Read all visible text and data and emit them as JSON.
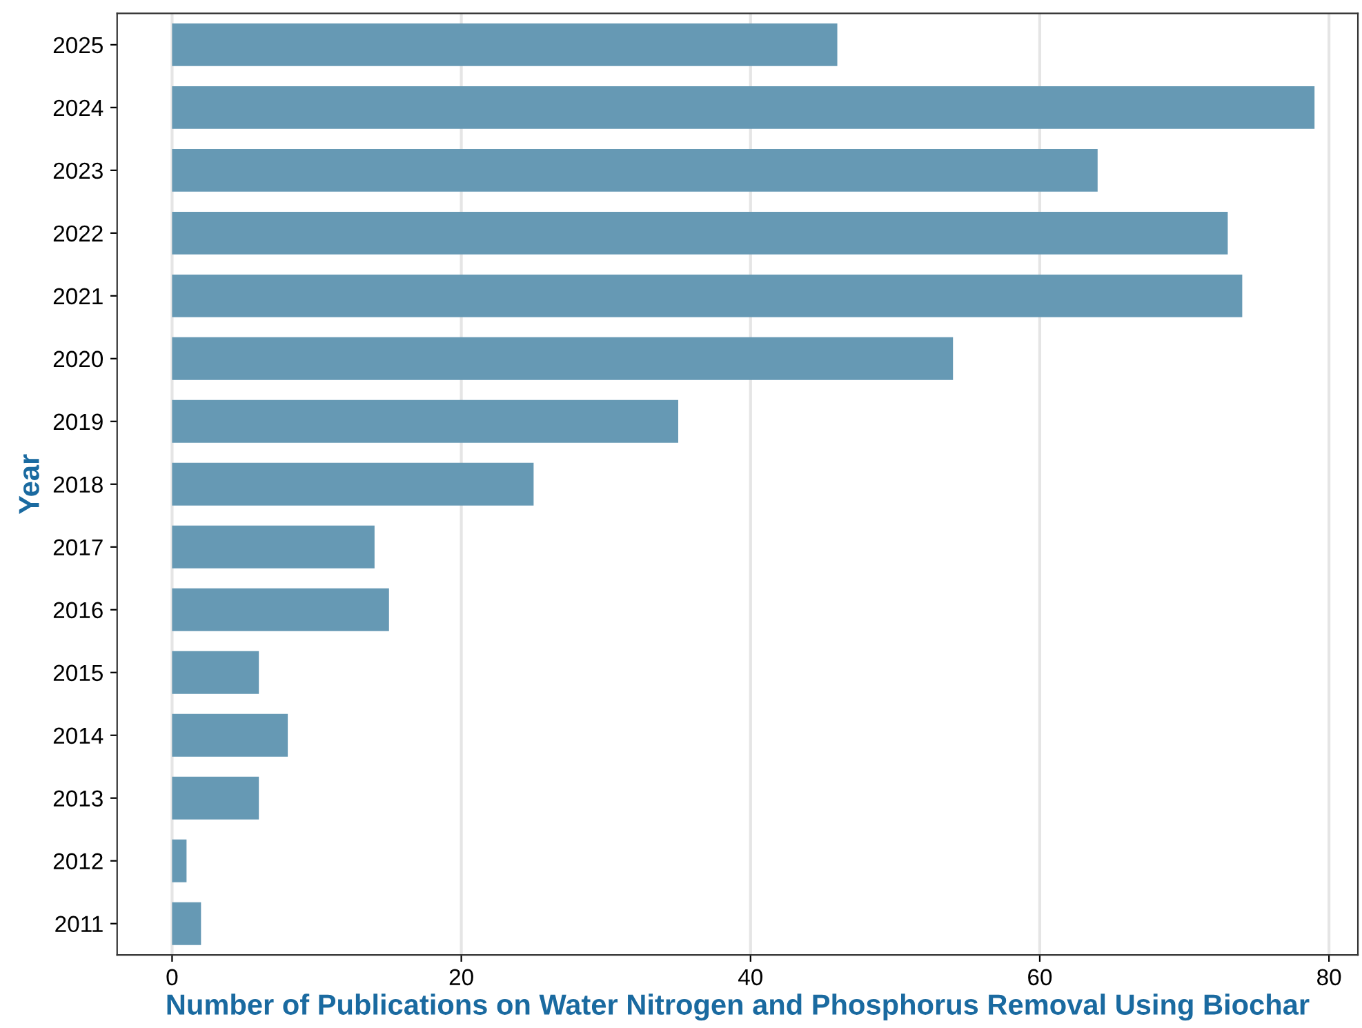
{
  "chart_data": {
    "type": "bar",
    "orientation": "horizontal",
    "xlabel": "Number of Publications on Water Nitrogen and Phosphorus Removal Using Biochar",
    "ylabel": "Year",
    "categories": [
      "2025",
      "2024",
      "2023",
      "2022",
      "2021",
      "2020",
      "2019",
      "2018",
      "2017",
      "2016",
      "2015",
      "2014",
      "2013",
      "2012",
      "2011"
    ],
    "values": [
      46,
      79,
      64,
      73,
      74,
      54,
      35,
      25,
      14,
      15,
      6,
      8,
      6,
      1,
      2
    ],
    "color": "#6699b4",
    "xlim": [
      -3.8,
      82
    ],
    "xticks": [
      0,
      20,
      40,
      60,
      80
    ],
    "grid": "x",
    "legend": false
  }
}
